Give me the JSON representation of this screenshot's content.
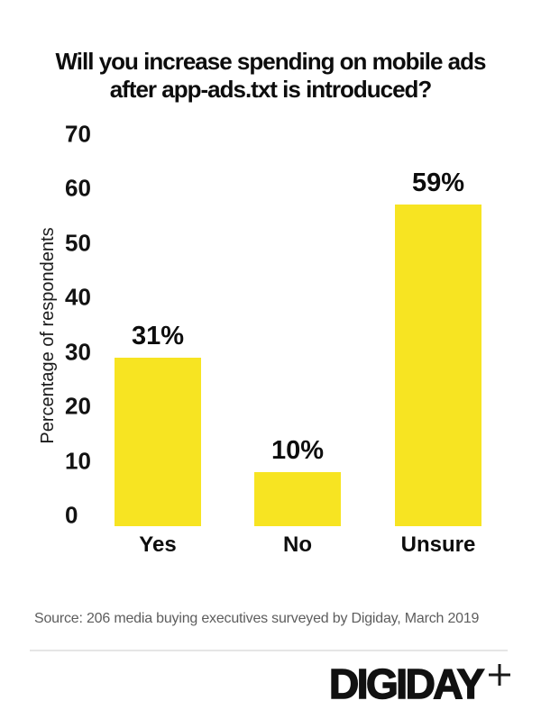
{
  "colors": {
    "bar_yellow": "#f7e422",
    "text_black": "#0d0d0d",
    "source_gray": "#5d5d5d",
    "divider_gray": "#e5e5e5"
  },
  "chart_data": {
    "type": "bar",
    "title": "Will you increase spending on mobile ads after app-ads.txt is introduced?",
    "title_lines": [
      "Will you increase spending on mobile ads",
      "after app-ads.txt is introduced?"
    ],
    "categories": [
      "Yes",
      "No",
      "Unsure"
    ],
    "values": [
      31,
      10,
      59
    ],
    "value_labels": [
      "31%",
      "10%",
      "59%"
    ],
    "xlabel": "",
    "ylabel": "Percentage of respondents",
    "ylim": [
      0,
      70
    ],
    "yticks": [
      70,
      60,
      50,
      40,
      30,
      20,
      10,
      0
    ],
    "grid": false,
    "legend_position": "none",
    "bar_color": "#f7e422"
  },
  "source": {
    "text": "Source: 206 media buying executives surveyed by Digiday,  March 2019"
  },
  "footer": {
    "logo_text": "DIGIDAY",
    "plus_icon": "plus"
  }
}
